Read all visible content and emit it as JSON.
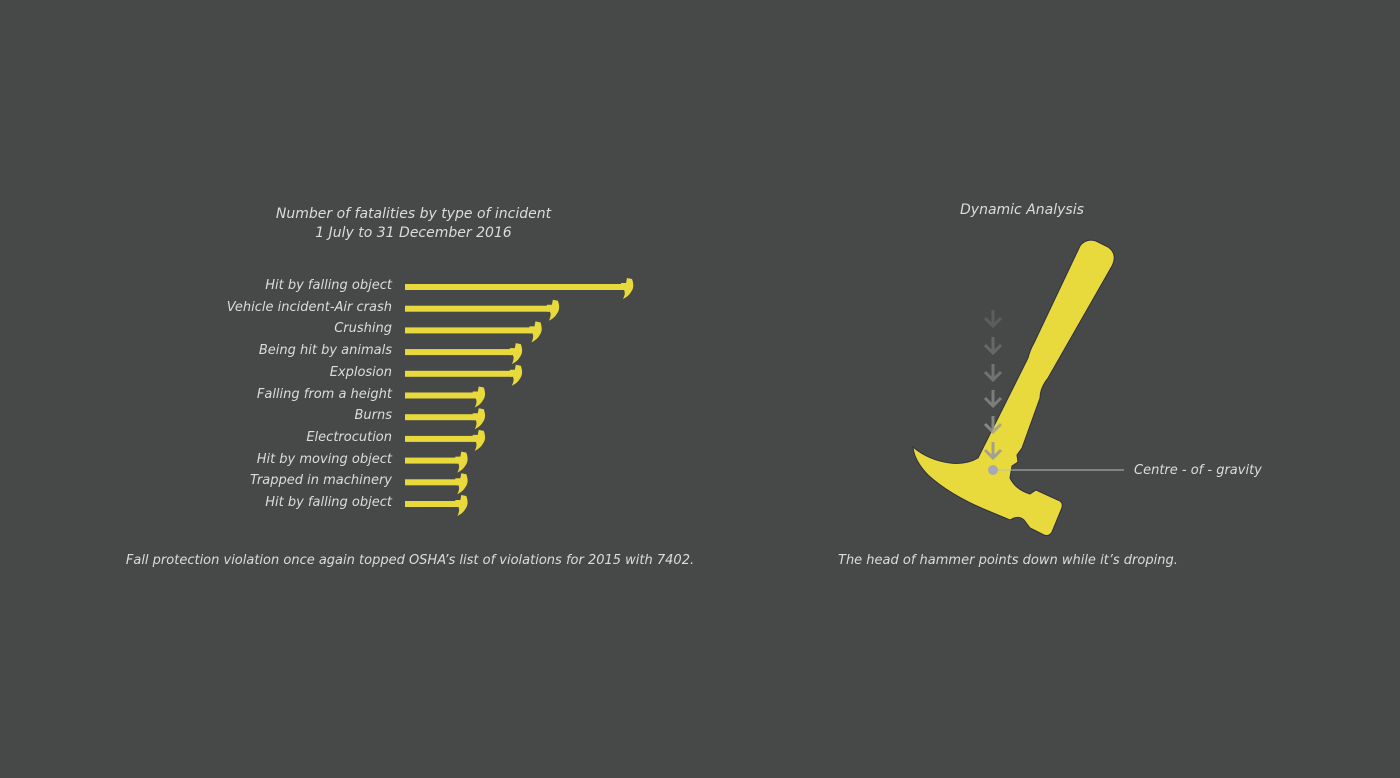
{
  "chart_data": {
    "type": "bar",
    "orientation": "horizontal",
    "title": "Number of fatalities by type of incident",
    "subtitle": "1 July to 31 December 2016",
    "categories": [
      "Hit by falling object",
      "Vehicle incident-Air crash",
      "Crushing",
      "Being hit by animals",
      "Explosion",
      "Falling from a height",
      "Burns",
      "Electrocution",
      "Hit by moving object",
      "Trapped in machinery",
      "Hit by falling object"
    ],
    "values": [
      100,
      66,
      58,
      49,
      49,
      32,
      32,
      32,
      24,
      24,
      24
    ],
    "value_units": "relative (no values printed)",
    "xlabel": "",
    "ylabel": "",
    "xlim": [
      0,
      100
    ],
    "grid": false,
    "bar_color": "#e8da3c"
  },
  "notes": {
    "left": "Fall protection violation once again topped OSHA’s list of violations for 2015 with 7402.",
    "right": "The head of hammer points down while it’s droping."
  },
  "dynamic": {
    "title": "Dynamic Analysis",
    "cog_label": "Centre - of - gravity"
  },
  "colors": {
    "background": "#474848",
    "accent": "#e8da3c",
    "text": "#dcdcdc"
  }
}
